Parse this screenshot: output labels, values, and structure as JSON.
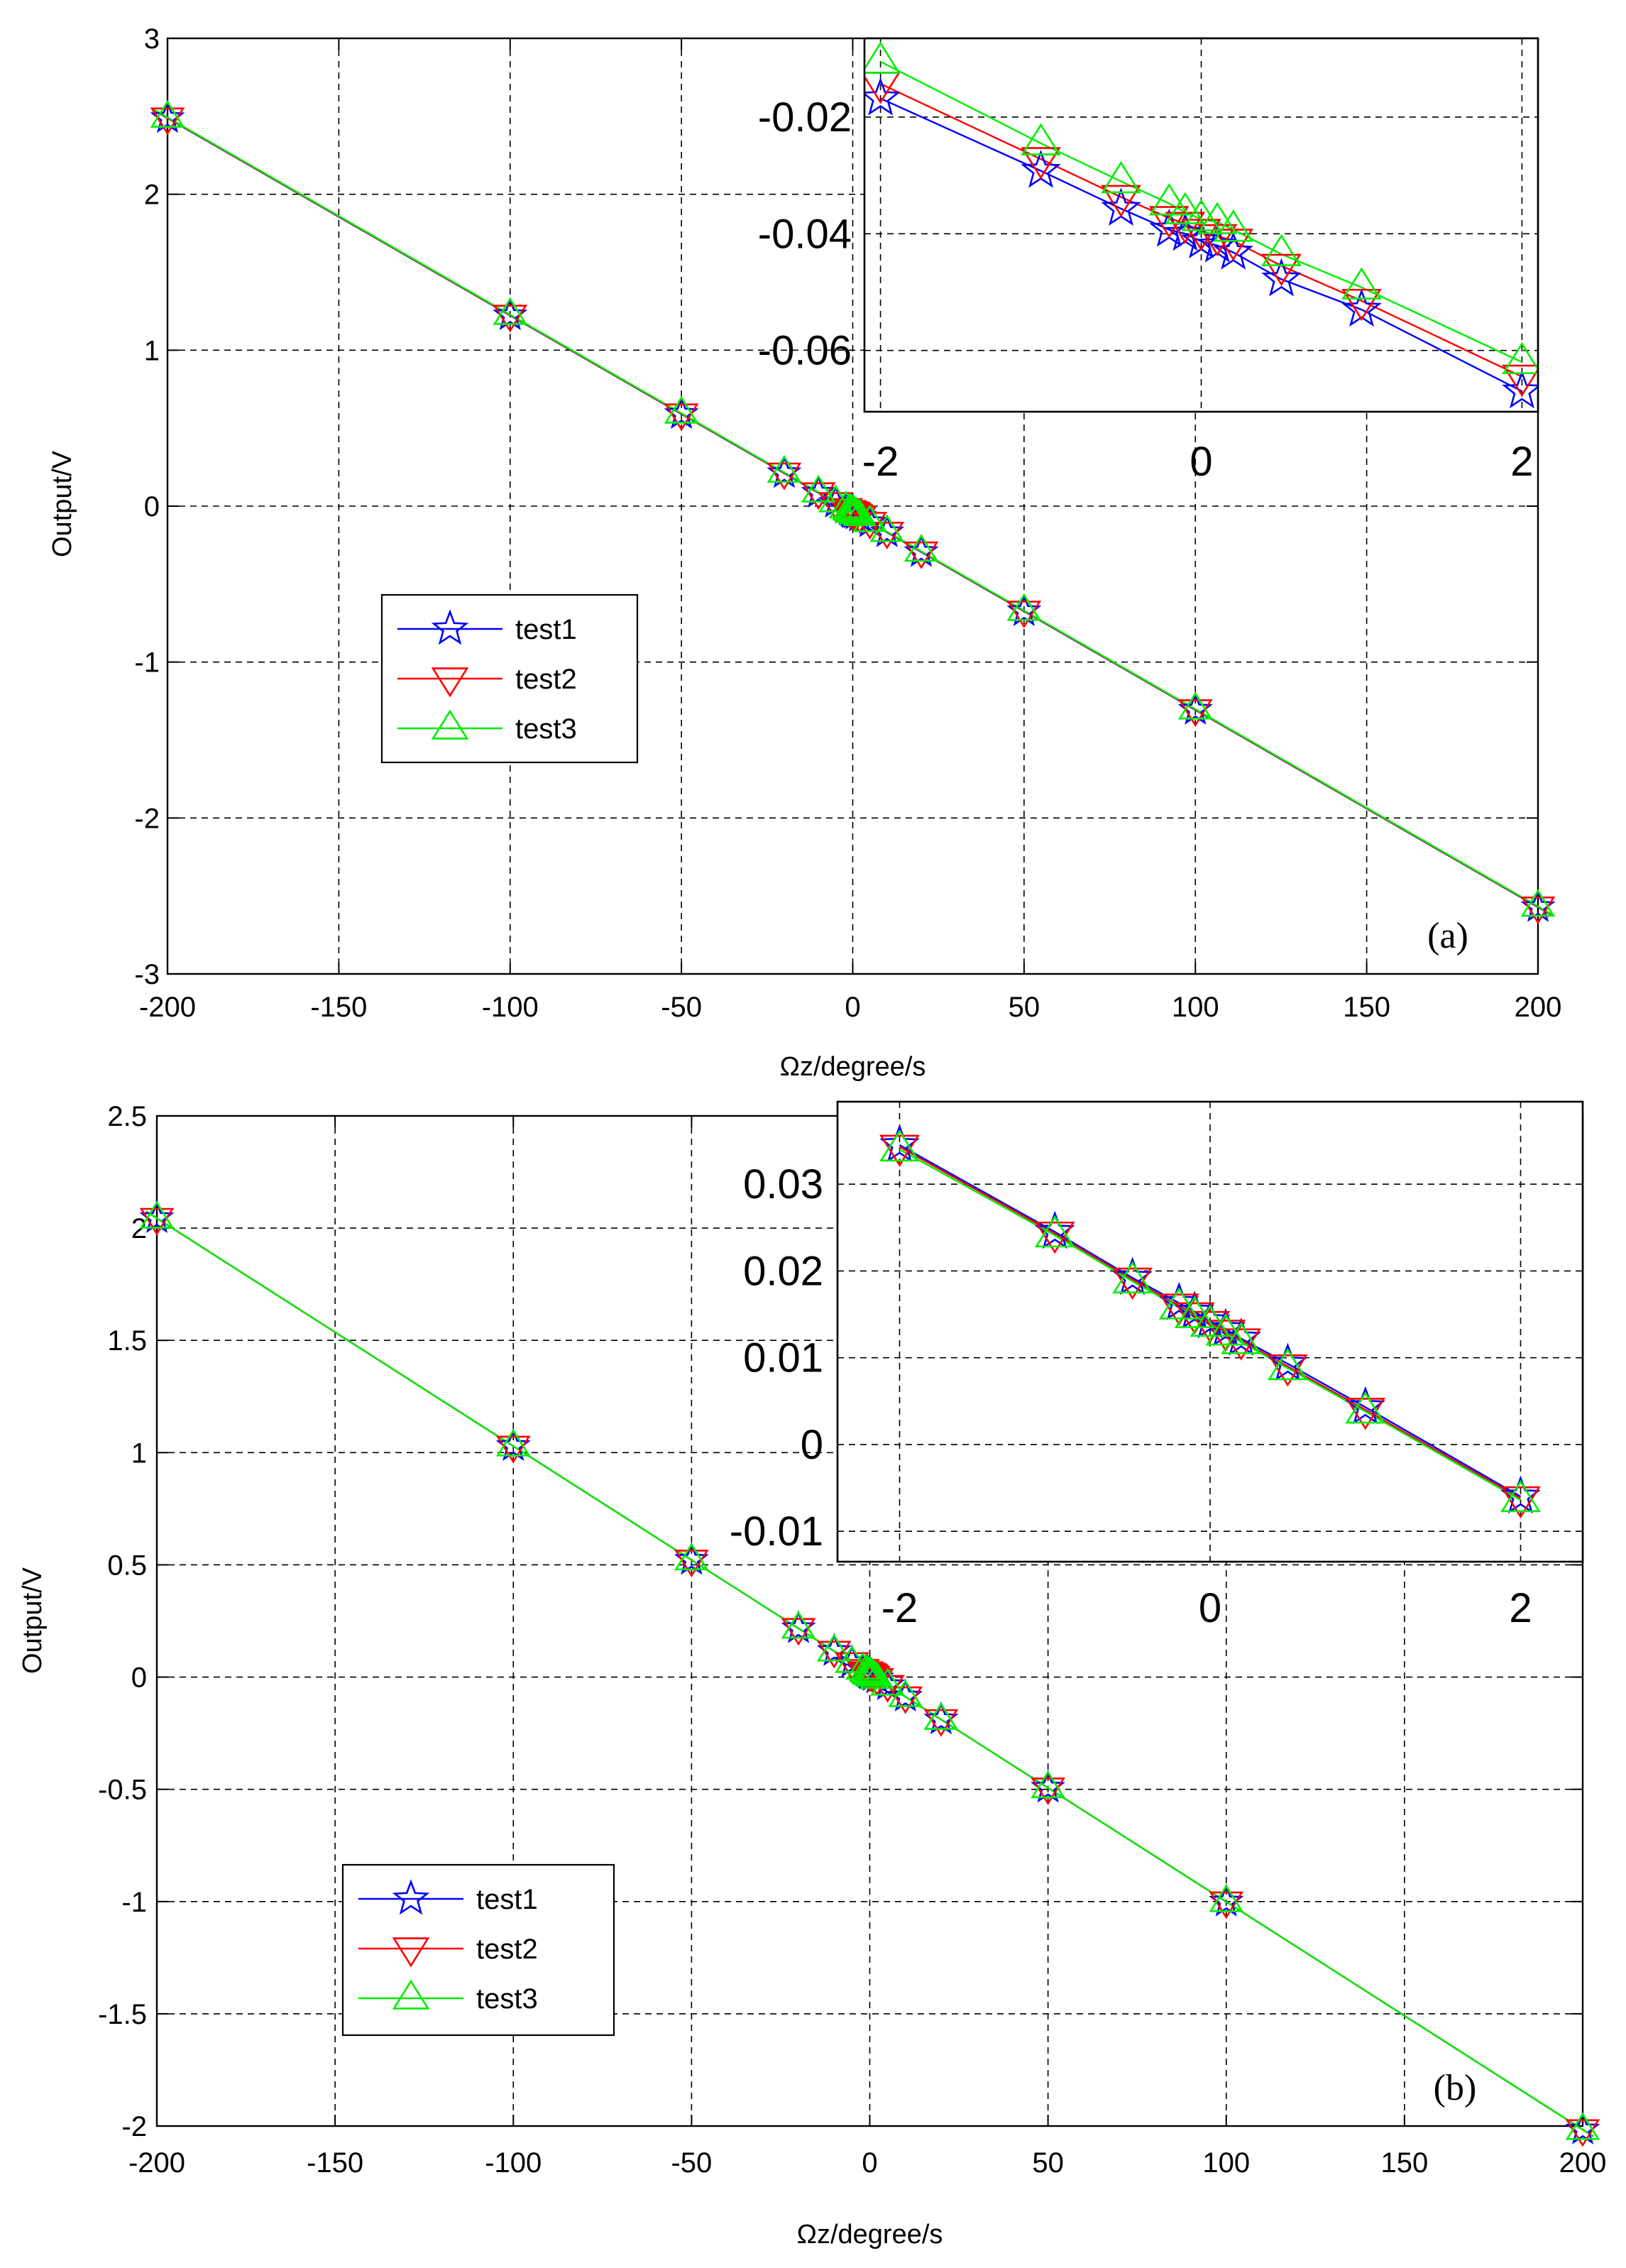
{
  "colors": {
    "test1": "#0000ff",
    "test2": "#ff0000",
    "test3": "#00ee00",
    "grid": "#000000"
  },
  "chart_data": [
    {
      "id": "a",
      "type": "line",
      "panel_label": "(a)",
      "xlabel": "Ωz/degree/s",
      "ylabel": "Output/V",
      "xlim": [
        -200,
        200
      ],
      "ylim": [
        -3,
        3
      ],
      "xticks": [
        -200,
        -150,
        -100,
        -50,
        0,
        50,
        100,
        150,
        200
      ],
      "xtick_labels": [
        "-200",
        "-150",
        "-100",
        "-50",
        "0",
        "50",
        "100",
        "150",
        "200"
      ],
      "yticks": [
        -3,
        -2,
        -1,
        0,
        1,
        2,
        3
      ],
      "ytick_labels": [
        "-3",
        "-2",
        "-1",
        "0",
        "1",
        "2",
        "3"
      ],
      "grid": true,
      "legend_position": "middle-left",
      "x": [
        -200,
        -100,
        -50,
        -20,
        -10,
        -5,
        -2,
        -1,
        -0.5,
        -0.2,
        -0.1,
        0,
        0.1,
        0.2,
        0.5,
        1,
        2,
        5,
        10,
        20,
        50,
        100,
        200
      ],
      "series": [
        {
          "name": "test1",
          "marker": "star",
          "intercept": -0.042,
          "slope": -0.01265
        },
        {
          "name": "test2",
          "marker": "triangle-down",
          "intercept": -0.04,
          "slope": -0.01265
        },
        {
          "name": "test3",
          "marker": "triangle-up",
          "intercept": -0.037,
          "slope": -0.01265
        }
      ],
      "inset": {
        "xlim": [
          -2.1,
          2.1
        ],
        "ylim": [
          -0.0705,
          -0.0065
        ],
        "xticks": [
          -2,
          0,
          2
        ],
        "xtick_labels": [
          "-2",
          "0",
          "2"
        ],
        "yticks": [
          -0.06,
          -0.04,
          -0.02
        ],
        "ytick_labels": [
          "-0.06",
          "-0.04",
          "-0.02"
        ],
        "x": [
          -2,
          -1,
          -0.5,
          -0.2,
          -0.1,
          0,
          0.1,
          0.2,
          0.5,
          1,
          2
        ],
        "series": [
          {
            "name": "test1",
            "values": [
              -0.0168,
              -0.0292,
              -0.0357,
              -0.0393,
              -0.04,
              -0.0413,
              -0.042,
              -0.0432,
              -0.0478,
              -0.053,
              -0.067
            ]
          },
          {
            "name": "test2",
            "values": [
              -0.0143,
              -0.0272,
              -0.0337,
              -0.0373,
              -0.0383,
              -0.0395,
              -0.0404,
              -0.0412,
              -0.0455,
              -0.0515,
              -0.0645
            ]
          },
          {
            "name": "test3",
            "values": [
              -0.0105,
              -0.0245,
              -0.031,
              -0.0348,
              -0.0363,
              -0.0375,
              -0.038,
              -0.0393,
              -0.0435,
              -0.0492,
              -0.062
            ]
          }
        ]
      }
    },
    {
      "id": "b",
      "type": "line",
      "panel_label": "(b)",
      "xlabel": "Ωz/degree/s",
      "ylabel": "Output/V",
      "xlim": [
        -200,
        200
      ],
      "ylim": [
        -2,
        2.5
      ],
      "xticks": [
        -200,
        -150,
        -100,
        -50,
        0,
        50,
        100,
        150,
        200
      ],
      "xtick_labels": [
        "-200",
        "-150",
        "-100",
        "-50",
        "0",
        "50",
        "100",
        "150",
        "200"
      ],
      "yticks": [
        -2,
        -1.5,
        -1,
        -0.5,
        0,
        0.5,
        1,
        1.5,
        2,
        2.5
      ],
      "ytick_labels": [
        "-2",
        "-1.5",
        "-1",
        "-0.5",
        "0",
        "0.5",
        "1",
        "1.5",
        "2",
        "2.5"
      ],
      "grid": true,
      "legend_position": "bottom-left",
      "x": [
        -200,
        -100,
        -50,
        -20,
        -10,
        -5,
        -2,
        -1,
        -0.5,
        -0.2,
        -0.1,
        0,
        0.1,
        0.2,
        0.5,
        1,
        2,
        5,
        10,
        20,
        50,
        100,
        200
      ],
      "series": [
        {
          "name": "test1",
          "marker": "star",
          "intercept": 0.014,
          "slope": -0.01015
        },
        {
          "name": "test2",
          "marker": "triangle-down",
          "intercept": 0.014,
          "slope": -0.01015
        },
        {
          "name": "test3",
          "marker": "triangle-up",
          "intercept": 0.014,
          "slope": -0.01015
        }
      ],
      "inset": {
        "xlim": [
          -2.4,
          2.4
        ],
        "ylim": [
          -0.0135,
          0.0395
        ],
        "xticks": [
          -2,
          0,
          2
        ],
        "xtick_labels": [
          "-2",
          "0",
          "2"
        ],
        "yticks": [
          -0.01,
          0,
          0.01,
          0.02,
          0.03
        ],
        "ytick_labels": [
          "-0.01",
          "0",
          "0.01",
          "0.02",
          "0.03"
        ],
        "x": [
          -2,
          -1,
          -0.5,
          -0.2,
          -0.1,
          0,
          0.1,
          0.2,
          0.5,
          1,
          2
        ],
        "series": [
          {
            "name": "test1",
            "values": [
              0.0345,
              0.0245,
              0.0192,
              0.0163,
              0.0153,
              0.0142,
              0.0133,
              0.0122,
              0.0093,
              0.0043,
              -0.006
            ]
          },
          {
            "name": "test2",
            "values": [
              0.0343,
              0.0243,
              0.019,
              0.016,
              0.015,
              0.014,
              0.013,
              0.012,
              0.009,
              0.004,
              -0.0062
            ]
          },
          {
            "name": "test3",
            "values": [
              0.034,
              0.0241,
              0.0188,
              0.0158,
              0.0148,
              0.0138,
              0.0128,
              0.0118,
              0.0088,
              0.0038,
              -0.0064
            ]
          }
        ]
      }
    }
  ]
}
